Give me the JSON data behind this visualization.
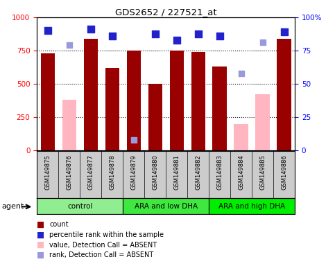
{
  "title": "GDS2652 / 227521_at",
  "samples": [
    "GSM149875",
    "GSM149876",
    "GSM149877",
    "GSM149878",
    "GSM149879",
    "GSM149880",
    "GSM149881",
    "GSM149882",
    "GSM149883",
    "GSM149884",
    "GSM149885",
    "GSM149886"
  ],
  "groups": [
    {
      "label": "control",
      "start": 0,
      "end": 4,
      "color": "#90EE90"
    },
    {
      "label": "ARA and low DHA",
      "start": 4,
      "end": 8,
      "color": "#3EE83E"
    },
    {
      "label": "ARA and high DHA",
      "start": 8,
      "end": 12,
      "color": "#00EE00"
    }
  ],
  "count_values": [
    730,
    null,
    840,
    620,
    750,
    500,
    750,
    740,
    630,
    null,
    null,
    840
  ],
  "absent_value": [
    null,
    380,
    null,
    null,
    null,
    null,
    null,
    null,
    null,
    200,
    420,
    null
  ],
  "percentile_rank": [
    900,
    null,
    910,
    860,
    null,
    875,
    830,
    875,
    860,
    null,
    null,
    890
  ],
  "absent_rank": [
    null,
    790,
    null,
    null,
    80,
    null,
    null,
    null,
    null,
    580,
    810,
    null
  ],
  "ylim_left": [
    0,
    1000
  ],
  "yticks_left": [
    0,
    250,
    500,
    750,
    1000
  ],
  "yticks_right_labels": [
    "0",
    "25",
    "50",
    "75",
    "100%"
  ],
  "bar_color_present": "#990000",
  "bar_color_absent": "#FFB6C1",
  "dot_color_present": "#2222CC",
  "dot_color_absent": "#9999DD",
  "legend_items": [
    {
      "color": "#990000",
      "label": "count"
    },
    {
      "color": "#2222CC",
      "label": "percentile rank within the sample"
    },
    {
      "color": "#FFB6C1",
      "label": "value, Detection Call = ABSENT"
    },
    {
      "color": "#9999DD",
      "label": "rank, Detection Call = ABSENT"
    }
  ]
}
